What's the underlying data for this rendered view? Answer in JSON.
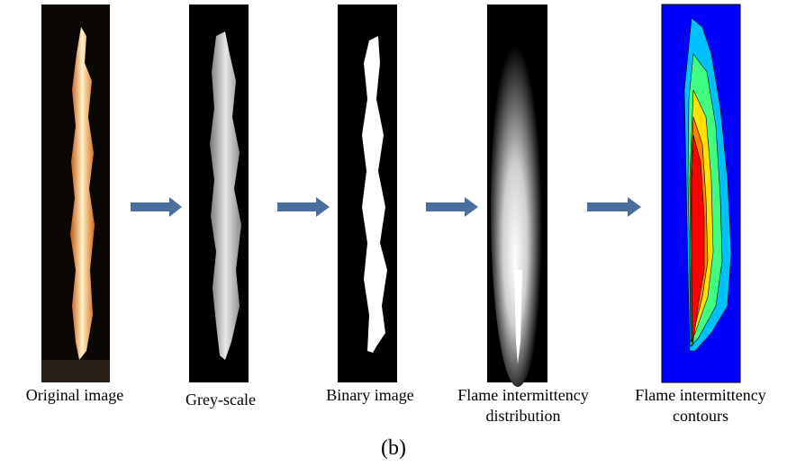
{
  "panels": [
    {
      "label": [
        "Original image"
      ]
    },
    {
      "label": [
        "Grey-scale"
      ]
    },
    {
      "label": [
        "Binary image"
      ]
    },
    {
      "label": [
        "Flame intermittency",
        "distribution"
      ]
    },
    {
      "label": [
        "Flame intermittency",
        "contours"
      ]
    }
  ],
  "caption": "(b)"
}
